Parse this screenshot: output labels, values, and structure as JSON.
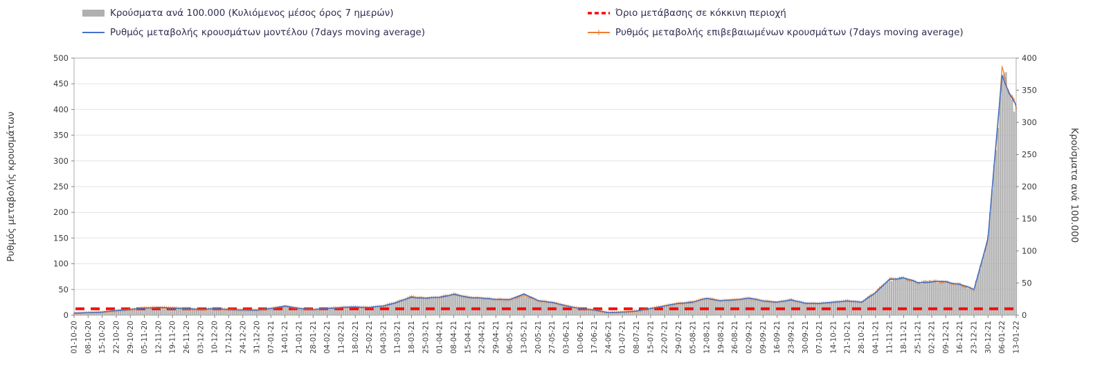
{
  "legend": {
    "items": [
      {
        "label": "Κρούσματα ανά 100.000 (Κυλιόμενος μέσος όρος 7 ημερών)",
        "swatch": "bar",
        "color": "#b0b0b0"
      },
      {
        "label": "Όριο μετάβασης σε κόκκινη περιοχή",
        "swatch": "dashed",
        "color": "#fe0000"
      },
      {
        "label": "Ρυθμός μεταβολής κρουσμάτων μοντέλου (7days moving average)",
        "swatch": "line",
        "color": "#4472c4"
      },
      {
        "label": "Ρυθμός μεταβολής επιβεβαιωμένων κρουσμάτων (7days moving average)",
        "swatch": "line-ticks",
        "color": "#ed7d31"
      }
    ]
  },
  "chart_data": {
    "type": "bar",
    "title": "",
    "ylabel_left": "Ρυθμός μεταβολής κρουσμάτων",
    "ylabel_right": "Κρούσματα ανά 100.000",
    "ylim_left": [
      0,
      500
    ],
    "ylim_right": [
      0,
      400
    ],
    "yticks_left": [
      0,
      50,
      100,
      150,
      200,
      250,
      300,
      350,
      400,
      450,
      500
    ],
    "yticks_right": [
      0,
      50,
      100,
      150,
      200,
      250,
      300,
      350,
      400
    ],
    "grid": "horizontal",
    "legend_position": "top",
    "sampling": "weekly",
    "categories": [
      "01-10-20",
      "08-10-20",
      "15-10-20",
      "22-10-20",
      "29-10-20",
      "05-11-20",
      "12-11-20",
      "19-11-20",
      "26-11-20",
      "03-12-20",
      "10-12-20",
      "17-12-20",
      "24-12-20",
      "31-12-20",
      "07-01-21",
      "14-01-21",
      "21-01-21",
      "28-01-21",
      "04-02-21",
      "11-02-21",
      "18-02-21",
      "25-02-21",
      "04-03-21",
      "11-03-21",
      "18-03-21",
      "25-03-21",
      "01-04-21",
      "08-04-21",
      "15-04-21",
      "22-04-21",
      "29-04-21",
      "06-05-21",
      "13-05-21",
      "20-05-21",
      "27-05-21",
      "03-06-21",
      "10-06-21",
      "17-06-21",
      "24-06-21",
      "01-07-21",
      "08-07-21",
      "15-07-21",
      "22-07-21",
      "29-07-21",
      "05-08-21",
      "12-08-21",
      "19-08-21",
      "26-08-21",
      "02-09-21",
      "09-09-21",
      "16-09-21",
      "23-09-21",
      "30-09-21",
      "07-10-21",
      "14-10-21",
      "21-10-21",
      "28-10-21",
      "04-11-21",
      "11-11-21",
      "18-11-21",
      "25-11-21",
      "02-12-21",
      "09-12-21",
      "16-12-21",
      "23-12-21",
      "30-12-21",
      "06-01-22",
      "13-01-22"
    ],
    "series": [
      {
        "name": "Κρούσματα ανά 100.000 (Κυλιόμενος μέσος όρος 7 ημερών)",
        "type": "bar",
        "axis": "right",
        "color": "#b9b9b9",
        "values": [
          3,
          4,
          5,
          7,
          9,
          11,
          12,
          11,
          10,
          9,
          10,
          9,
          8,
          8,
          10,
          14,
          10,
          9,
          10,
          12,
          13,
          12,
          14,
          20,
          28,
          26,
          28,
          32,
          28,
          26,
          25,
          24,
          30,
          22,
          20,
          14,
          10,
          8,
          4,
          5,
          6,
          10,
          14,
          18,
          20,
          26,
          22,
          24,
          26,
          22,
          20,
          24,
          18,
          18,
          20,
          22,
          20,
          35,
          55,
          58,
          50,
          52,
          52,
          48,
          40,
          120,
          375,
          325
        ]
      },
      {
        "name": "Ρυθμός μεταβολής κρουσμάτων μοντέλου (7days moving average)",
        "type": "line",
        "axis": "left",
        "color": "#4472c4",
        "values": [
          4,
          5,
          6,
          9,
          11,
          14,
          15,
          14,
          13,
          11,
          13,
          11,
          10,
          10,
          13,
          18,
          13,
          11,
          13,
          15,
          16,
          15,
          18,
          25,
          35,
          33,
          35,
          40,
          35,
          33,
          31,
          30,
          42,
          28,
          25,
          18,
          13,
          10,
          5,
          6,
          8,
          13,
          18,
          23,
          25,
          33,
          28,
          30,
          33,
          28,
          25,
          30,
          23,
          23,
          25,
          28,
          25,
          44,
          69,
          73,
          63,
          65,
          65,
          60,
          50,
          150,
          469,
          406
        ]
      },
      {
        "name": "Ρυθμός μεταβολής επιβεβαιωμένων κρουσμάτων (7days moving average)",
        "type": "line",
        "axis": "left",
        "color": "#ed7d31",
        "values": [
          4,
          5,
          6,
          9,
          11,
          14,
          15,
          14,
          12,
          11,
          13,
          11,
          10,
          10,
          13,
          17,
          13,
          11,
          13,
          15,
          16,
          15,
          18,
          26,
          36,
          33,
          35,
          41,
          35,
          33,
          31,
          30,
          39,
          28,
          25,
          18,
          13,
          10,
          5,
          6,
          8,
          13,
          18,
          23,
          26,
          33,
          28,
          30,
          33,
          28,
          25,
          30,
          23,
          23,
          25,
          28,
          25,
          45,
          70,
          72,
          63,
          66,
          64,
          59,
          50,
          148,
          474,
          400
        ]
      },
      {
        "name": "Όριο μετάβασης σε κόκκινη περιοχή",
        "type": "threshold",
        "axis": "right",
        "color": "#fe0000",
        "value": 10
      }
    ]
  }
}
